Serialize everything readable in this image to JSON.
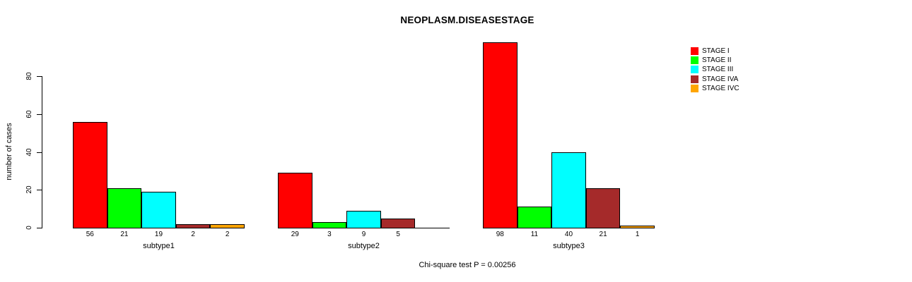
{
  "title": "NEOPLASM.DISEASESTAGE",
  "y_axis": {
    "label": "number of cases",
    "ticks": [
      0,
      20,
      40,
      60,
      80
    ]
  },
  "footer_note": "Chi-square test P = 0.00256",
  "legend": {
    "position": "right",
    "items": [
      {
        "label": "STAGE I",
        "color": "#FF0000"
      },
      {
        "label": "STAGE II",
        "color": "#00FF00"
      },
      {
        "label": "STAGE III",
        "color": "#00FFFF"
      },
      {
        "label": "STAGE IVA",
        "color": "#A52A2A"
      },
      {
        "label": "STAGE IVC",
        "color": "#FFA500"
      }
    ]
  },
  "chart_data": {
    "type": "bar",
    "title": "NEOPLASM.DISEASESTAGE",
    "xlabel": "",
    "ylabel": "number of cases",
    "ylim": [
      0,
      80
    ],
    "grid": false,
    "legend_position": "right",
    "categories": [
      "subtype1",
      "subtype2",
      "subtype3"
    ],
    "series": [
      {
        "name": "STAGE I",
        "color": "#FF0000",
        "values": [
          56,
          29,
          98
        ]
      },
      {
        "name": "STAGE II",
        "color": "#00FF00",
        "values": [
          21,
          3,
          11
        ]
      },
      {
        "name": "STAGE III",
        "color": "#00FFFF",
        "values": [
          19,
          9,
          40
        ]
      },
      {
        "name": "STAGE IVA",
        "color": "#A52A2A",
        "values": [
          2,
          5,
          21
        ]
      },
      {
        "name": "STAGE IVC",
        "color": "#FFA500",
        "values": [
          2,
          0,
          1
        ]
      }
    ],
    "bar_value_labels_shown": true,
    "annotation": "Chi-square test P = 0.00256"
  }
}
